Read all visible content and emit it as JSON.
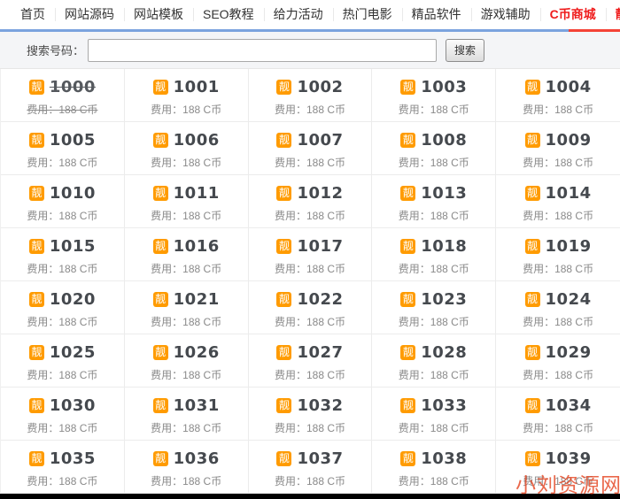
{
  "nav": {
    "items": [
      {
        "label": "首页",
        "highlight": false,
        "active": false
      },
      {
        "label": "网站源码",
        "highlight": false,
        "active": false
      },
      {
        "label": "网站模板",
        "highlight": false,
        "active": false
      },
      {
        "label": "SEO教程",
        "highlight": false,
        "active": false
      },
      {
        "label": "给力活动",
        "highlight": false,
        "active": false
      },
      {
        "label": "热门电影",
        "highlight": false,
        "active": false
      },
      {
        "label": "精品软件",
        "highlight": false,
        "active": false
      },
      {
        "label": "游戏辅助",
        "highlight": false,
        "active": false
      },
      {
        "label": "C币商城",
        "highlight": true,
        "active": false
      },
      {
        "label": "靓号中心",
        "highlight": true,
        "active": true
      }
    ]
  },
  "search": {
    "label": "搜索号码：",
    "input_value": "",
    "button_label": "搜索"
  },
  "grid": {
    "badge_char": "靓",
    "cost_label": "费用：188 C币",
    "items": [
      {
        "number": "1000",
        "sold": true
      },
      {
        "number": "1001",
        "sold": false
      },
      {
        "number": "1002",
        "sold": false
      },
      {
        "number": "1003",
        "sold": false
      },
      {
        "number": "1004",
        "sold": false
      },
      {
        "number": "1005",
        "sold": false
      },
      {
        "number": "1006",
        "sold": false
      },
      {
        "number": "1007",
        "sold": false
      },
      {
        "number": "1008",
        "sold": false
      },
      {
        "number": "1009",
        "sold": false
      },
      {
        "number": "1010",
        "sold": false
      },
      {
        "number": "1011",
        "sold": false
      },
      {
        "number": "1012",
        "sold": false
      },
      {
        "number": "1013",
        "sold": false
      },
      {
        "number": "1014",
        "sold": false
      },
      {
        "number": "1015",
        "sold": false
      },
      {
        "number": "1016",
        "sold": false
      },
      {
        "number": "1017",
        "sold": false
      },
      {
        "number": "1018",
        "sold": false
      },
      {
        "number": "1019",
        "sold": false
      },
      {
        "number": "1020",
        "sold": false
      },
      {
        "number": "1021",
        "sold": false
      },
      {
        "number": "1022",
        "sold": false
      },
      {
        "number": "1023",
        "sold": false
      },
      {
        "number": "1024",
        "sold": false
      },
      {
        "number": "1025",
        "sold": false
      },
      {
        "number": "1026",
        "sold": false
      },
      {
        "number": "1027",
        "sold": false
      },
      {
        "number": "1028",
        "sold": false
      },
      {
        "number": "1029",
        "sold": false
      },
      {
        "number": "1030",
        "sold": false
      },
      {
        "number": "1031",
        "sold": false
      },
      {
        "number": "1032",
        "sold": false
      },
      {
        "number": "1033",
        "sold": false
      },
      {
        "number": "1034",
        "sold": false
      },
      {
        "number": "1035",
        "sold": false
      },
      {
        "number": "1036",
        "sold": false
      },
      {
        "number": "1037",
        "sold": false
      },
      {
        "number": "1038",
        "sold": false
      },
      {
        "number": "1039",
        "sold": false
      }
    ]
  },
  "watermark": {
    "text": "小刘资源网"
  },
  "colors": {
    "nav_highlight_red": "#ef1c1c",
    "rule_blue": "#7ba3de",
    "rule_active_red": "#f44336",
    "badge_orange": "#ff9b00",
    "number_dark": "#45494e",
    "cost_gray": "#8a8a8a",
    "watermark_orange": "#e43e18",
    "search_bg": "#f4f5f7",
    "bottom_bar_black": "#000000"
  }
}
